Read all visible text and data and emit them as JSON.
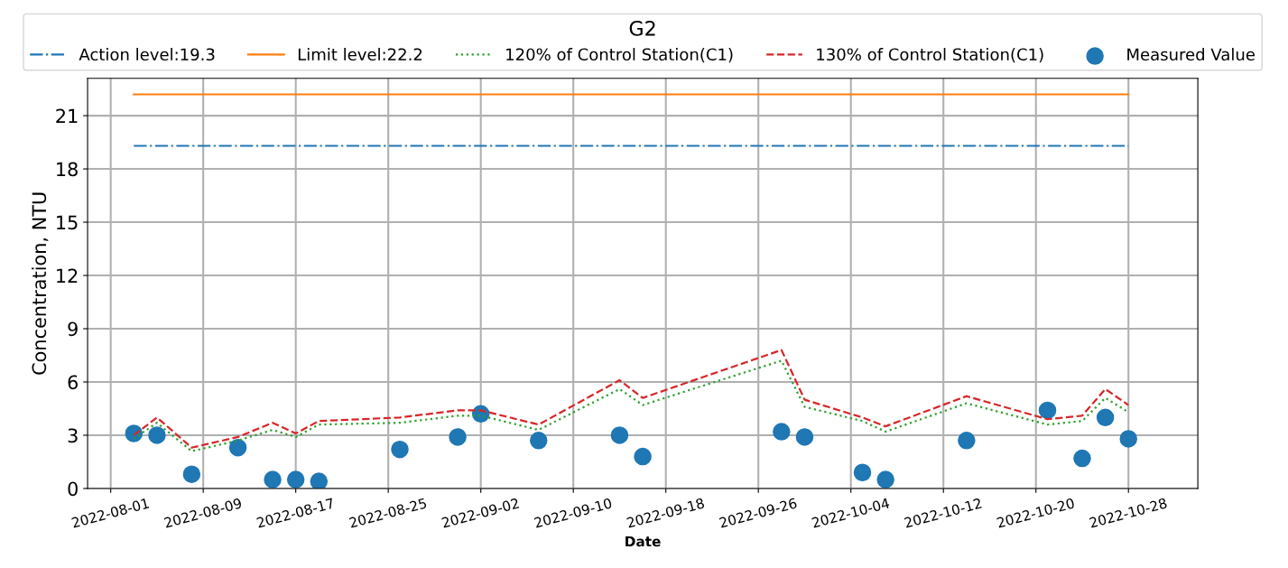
{
  "chart_data": {
    "type": "line",
    "legend_title": "G2",
    "xlabel": "Date",
    "ylabel": "Concentration, NTU",
    "xlim": [
      "2022-07-30",
      "2022-11-03"
    ],
    "ylim": [
      0,
      23.1
    ],
    "xticks": [
      "2022-08-01",
      "2022-08-09",
      "2022-08-17",
      "2022-08-25",
      "2022-09-02",
      "2022-09-10",
      "2022-09-18",
      "2022-09-26",
      "2022-10-04",
      "2022-10-12",
      "2022-10-20",
      "2022-10-28"
    ],
    "yticks": [
      0,
      3,
      6,
      9,
      12,
      15,
      18,
      21
    ],
    "grid": true,
    "legend": "top",
    "series": [
      {
        "name": "Action level:19.3",
        "line_style": "dashdot",
        "color": "#1f77b4",
        "x": [
          "2022-08-03",
          "2022-10-28"
        ],
        "values": [
          19.3,
          19.3
        ]
      },
      {
        "name": "Limit level:22.2",
        "line_style": "solid",
        "color": "#ff7f0e",
        "x": [
          "2022-08-03",
          "2022-10-28"
        ],
        "values": [
          22.2,
          22.2
        ]
      },
      {
        "name": "120% of Control Station(C1)",
        "line_style": "dotted",
        "color": "#2ca02c",
        "x": [
          "2022-08-03",
          "2022-08-05",
          "2022-08-08",
          "2022-08-12",
          "2022-08-15",
          "2022-08-17",
          "2022-08-19",
          "2022-08-26",
          "2022-08-31",
          "2022-09-02",
          "2022-09-07",
          "2022-09-14",
          "2022-09-16",
          "2022-09-28",
          "2022-09-30",
          "2022-10-05",
          "2022-10-07",
          "2022-10-14",
          "2022-10-21",
          "2022-10-24",
          "2022-10-26",
          "2022-10-28"
        ],
        "values": [
          2.8,
          3.7,
          2.1,
          2.7,
          3.3,
          2.9,
          3.6,
          3.7,
          4.1,
          4.1,
          3.3,
          5.6,
          4.7,
          7.2,
          4.6,
          3.8,
          3.2,
          4.8,
          3.6,
          3.8,
          5.1,
          4.3
        ]
      },
      {
        "name": "130% of Control Station(C1)",
        "line_style": "dashed",
        "color": "#d62728",
        "x": [
          "2022-08-03",
          "2022-08-05",
          "2022-08-08",
          "2022-08-12",
          "2022-08-15",
          "2022-08-17",
          "2022-08-19",
          "2022-08-26",
          "2022-08-31",
          "2022-09-02",
          "2022-09-07",
          "2022-09-14",
          "2022-09-16",
          "2022-09-28",
          "2022-09-30",
          "2022-10-05",
          "2022-10-07",
          "2022-10-14",
          "2022-10-21",
          "2022-10-24",
          "2022-10-26",
          "2022-10-28"
        ],
        "values": [
          3.0,
          4.0,
          2.3,
          2.9,
          3.7,
          3.1,
          3.8,
          4.0,
          4.4,
          4.4,
          3.6,
          6.1,
          5.1,
          7.8,
          5.0,
          4.0,
          3.5,
          5.2,
          3.9,
          4.1,
          5.6,
          4.7
        ]
      },
      {
        "name": "Measured Value",
        "type": "scatter",
        "marker": "circle",
        "color": "#1f77b4",
        "x": [
          "2022-08-03",
          "2022-08-05",
          "2022-08-08",
          "2022-08-12",
          "2022-08-15",
          "2022-08-17",
          "2022-08-19",
          "2022-08-26",
          "2022-08-31",
          "2022-09-02",
          "2022-09-07",
          "2022-09-14",
          "2022-09-16",
          "2022-09-28",
          "2022-09-30",
          "2022-10-05",
          "2022-10-07",
          "2022-10-14",
          "2022-10-21",
          "2022-10-24",
          "2022-10-26",
          "2022-10-28"
        ],
        "values": [
          3.1,
          3.0,
          0.8,
          2.3,
          0.5,
          0.5,
          0.4,
          2.2,
          2.9,
          4.2,
          2.7,
          3.0,
          1.8,
          3.2,
          2.9,
          0.9,
          0.5,
          2.7,
          4.4,
          1.7,
          4.0,
          2.8
        ]
      }
    ]
  }
}
